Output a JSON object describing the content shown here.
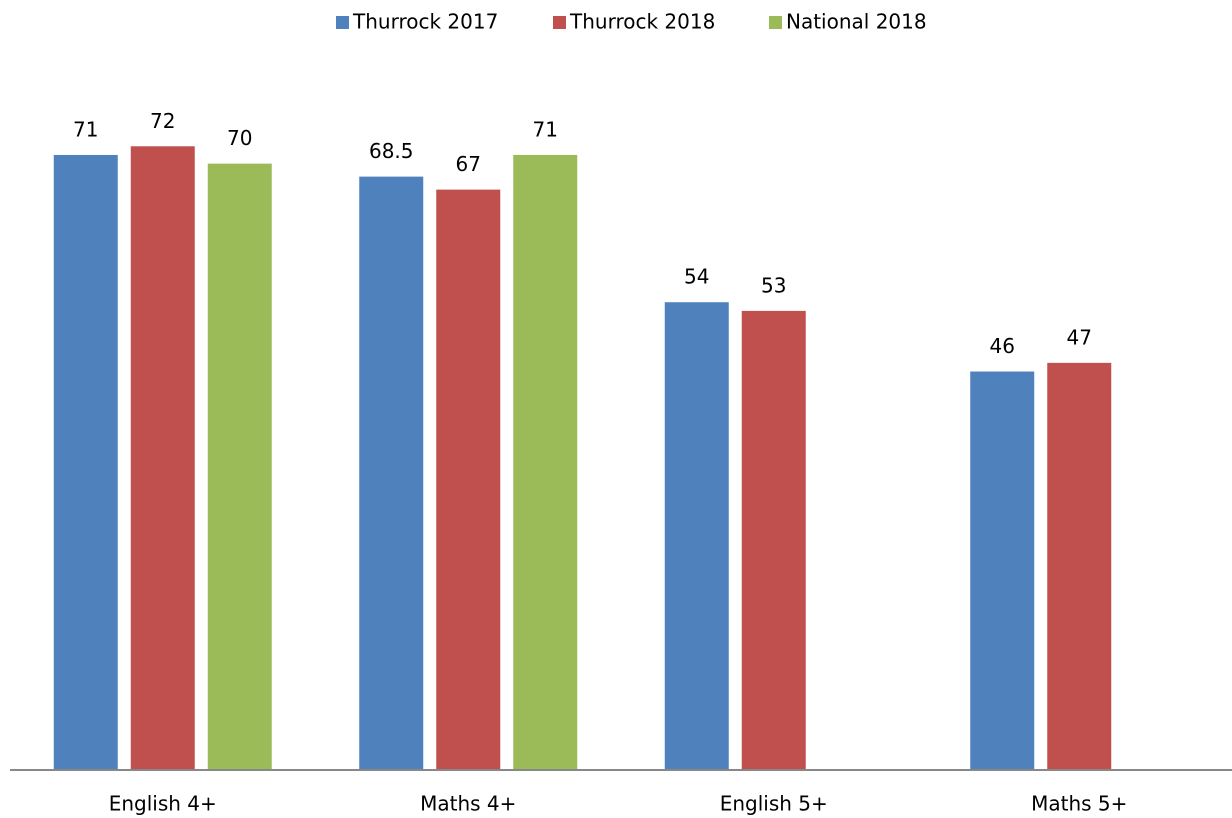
{
  "chart_data": {
    "type": "bar",
    "categories": [
      "English 4+",
      "Maths 4+",
      "English 5+",
      "Maths 5+"
    ],
    "series": [
      {
        "name": "Thurrock 2017",
        "color": "#4f81bd",
        "values": [
          71,
          68.5,
          54,
          46
        ]
      },
      {
        "name": "Thurrock 2018",
        "color": "#c0504d",
        "values": [
          72,
          67,
          53,
          47
        ]
      },
      {
        "name": "National 2018",
        "color": "#9bbb59",
        "values": [
          70,
          71,
          null,
          null
        ]
      }
    ],
    "ylim": [
      0,
      80
    ],
    "legend": "top"
  }
}
